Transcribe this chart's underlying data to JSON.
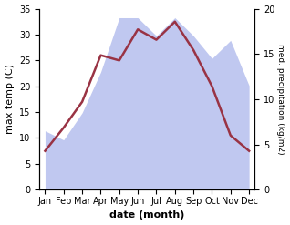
{
  "months": [
    "Jan",
    "Feb",
    "Mar",
    "Apr",
    "May",
    "Jun",
    "Jul",
    "Aug",
    "Sep",
    "Oct",
    "Nov",
    "Dec"
  ],
  "temp": [
    7.5,
    12.0,
    17.0,
    26.0,
    25.0,
    31.0,
    29.0,
    32.5,
    27.0,
    20.0,
    10.5,
    7.5
  ],
  "precip": [
    6.5,
    5.5,
    8.5,
    13.0,
    19.0,
    19.0,
    17.0,
    19.0,
    17.0,
    14.5,
    16.5,
    11.5
  ],
  "temp_color": "#993344",
  "precip_fill_color": "#c0c8f0",
  "temp_ylim": [
    0,
    35
  ],
  "precip_ylim": [
    0,
    20
  ],
  "temp_yticks": [
    0,
    5,
    10,
    15,
    20,
    25,
    30,
    35
  ],
  "precip_yticks": [
    0,
    5,
    10,
    15,
    20
  ],
  "xlabel": "date (month)",
  "ylabel_left": "max temp (C)",
  "ylabel_right": "med. precipitation (kg/m2)",
  "background_color": "#ffffff"
}
